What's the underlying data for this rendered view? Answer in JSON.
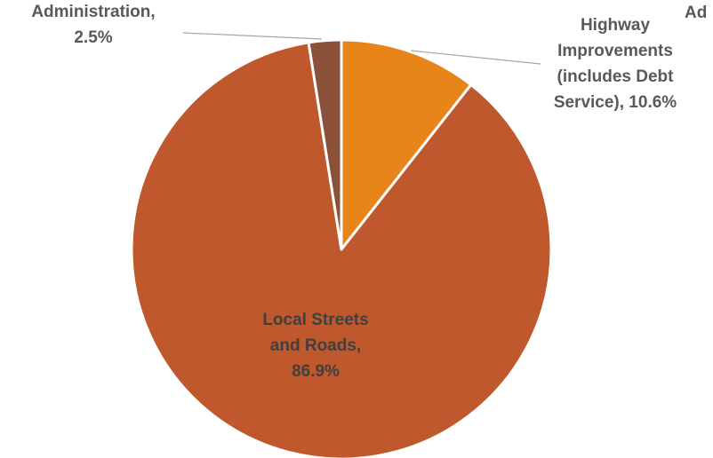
{
  "chart_data": {
    "type": "pie",
    "slices": [
      {
        "label_lines": [
          "Highway",
          "Improvements",
          "(includes Debt",
          "Service), 10.6%"
        ],
        "value": 10.6,
        "color": "#e7841a"
      },
      {
        "label_lines": [
          "Local Streets",
          "and Roads,",
          "86.9%"
        ],
        "value": 86.9,
        "color": "#bf582c"
      },
      {
        "label_lines": [
          "Administration,",
          "2.5%"
        ],
        "value": 2.5,
        "color": "#8b5038"
      }
    ],
    "clipped_fragment": "Ad"
  }
}
